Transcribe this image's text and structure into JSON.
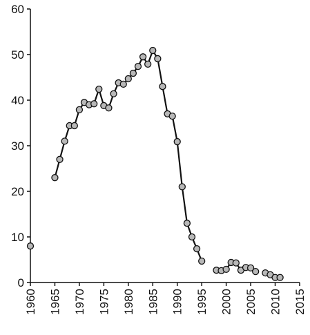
{
  "chart_data": {
    "type": "line",
    "x": [
      1960,
      1961,
      1962,
      1963,
      1964,
      1965,
      1966,
      1967,
      1968,
      1969,
      1970,
      1971,
      1972,
      1973,
      1974,
      1975,
      1976,
      1977,
      1978,
      1979,
      1980,
      1981,
      1982,
      1983,
      1984,
      1985,
      1986,
      1987,
      1988,
      1989,
      1990,
      1991,
      1992,
      1993,
      1994,
      1995,
      1996,
      1997,
      1998,
      1999,
      2000,
      2001,
      2002,
      2003,
      2004,
      2005,
      2006,
      2007,
      2008,
      2009,
      2010,
      2011
    ],
    "values": [
      8,
      null,
      null,
      null,
      null,
      23,
      27,
      31,
      34.4,
      34.4,
      37.9,
      39.5,
      39,
      39.2,
      42.4,
      38.8,
      38.3,
      41.4,
      43.8,
      43.5,
      44.7,
      45.9,
      47.4,
      49.5,
      47.9,
      50.9,
      49.1,
      43,
      37,
      36.5,
      30.9,
      21,
      13,
      10,
      7.4,
      4.7,
      null,
      null,
      2.7,
      2.6,
      2.9,
      4.4,
      4.3,
      2.7,
      3.3,
      3.2,
      2.4,
      null,
      2.1,
      1.7,
      1.1,
      1.1
    ],
    "color": "#111111",
    "marker_color": "#b8b8b8",
    "xlim": [
      1960,
      2015
    ],
    "xticks": [
      1960,
      1965,
      1970,
      1975,
      1980,
      1985,
      1990,
      1995,
      2000,
      2005,
      2010,
      2015
    ],
    "ylim": [
      0,
      60
    ],
    "yticks": [
      0,
      10,
      20,
      30,
      40,
      50,
      60
    ]
  }
}
